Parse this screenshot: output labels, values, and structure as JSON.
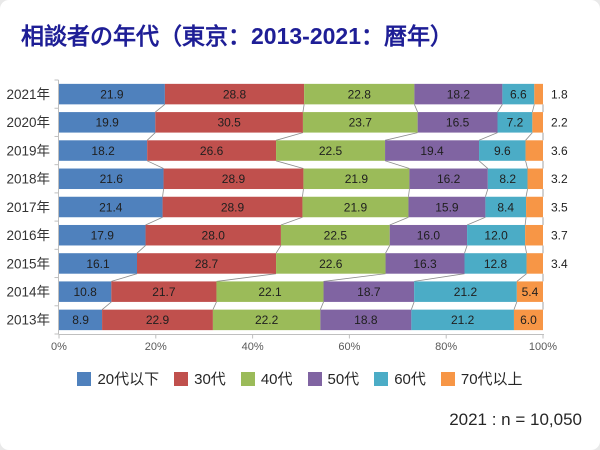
{
  "title": "相談者の年代（東京：2013-2021：暦年）",
  "note": "2021 : n = 10,050",
  "colors": {
    "title": "#1E1E96",
    "axis_line": "#BFBFBF",
    "tick_label": "#595959",
    "year_label": "#333333",
    "value_label": "#1f1f1f",
    "connector": "#8c8c8c",
    "background": "#ffffff"
  },
  "chart_data": {
    "type": "bar",
    "orientation": "horizontal-stacked",
    "title": "相談者の年代（東京：2013-2021：暦年）",
    "categories": [
      "2021年",
      "2020年",
      "2019年",
      "2018年",
      "2017年",
      "2016年",
      "2015年",
      "2014年",
      "2013年"
    ],
    "series": [
      {
        "name": "20代以下",
        "color": "#4F81BD",
        "values": [
          21.9,
          19.9,
          18.2,
          21.6,
          21.4,
          17.9,
          16.1,
          10.8,
          8.9
        ]
      },
      {
        "name": "30代",
        "color": "#C0504D",
        "values": [
          28.8,
          30.5,
          26.6,
          28.9,
          28.9,
          28.0,
          28.7,
          21.7,
          22.9
        ]
      },
      {
        "name": "40代",
        "color": "#9BBB59",
        "values": [
          22.8,
          23.7,
          22.5,
          21.9,
          21.9,
          22.5,
          22.6,
          22.1,
          22.2
        ]
      },
      {
        "name": "50代",
        "color": "#8064A2",
        "values": [
          18.2,
          16.5,
          19.4,
          16.2,
          15.9,
          16.0,
          16.3,
          18.7,
          18.8
        ]
      },
      {
        "name": "60代",
        "color": "#4BACC6",
        "values": [
          6.6,
          7.2,
          9.6,
          8.2,
          8.4,
          12.0,
          12.8,
          21.2,
          21.2
        ]
      },
      {
        "name": "70代以上",
        "color": "#F79646",
        "values": [
          1.8,
          2.2,
          3.6,
          3.2,
          3.5,
          3.7,
          3.4,
          5.4,
          6.0
        ]
      }
    ],
    "x_ticks": [
      "0%",
      "20%",
      "40%",
      "60%",
      "80%",
      "100%"
    ],
    "xlim": [
      0,
      100
    ],
    "grid": false,
    "legend_position": "bottom",
    "data_labels": "inside, last series labeled outside right when segment is small"
  }
}
